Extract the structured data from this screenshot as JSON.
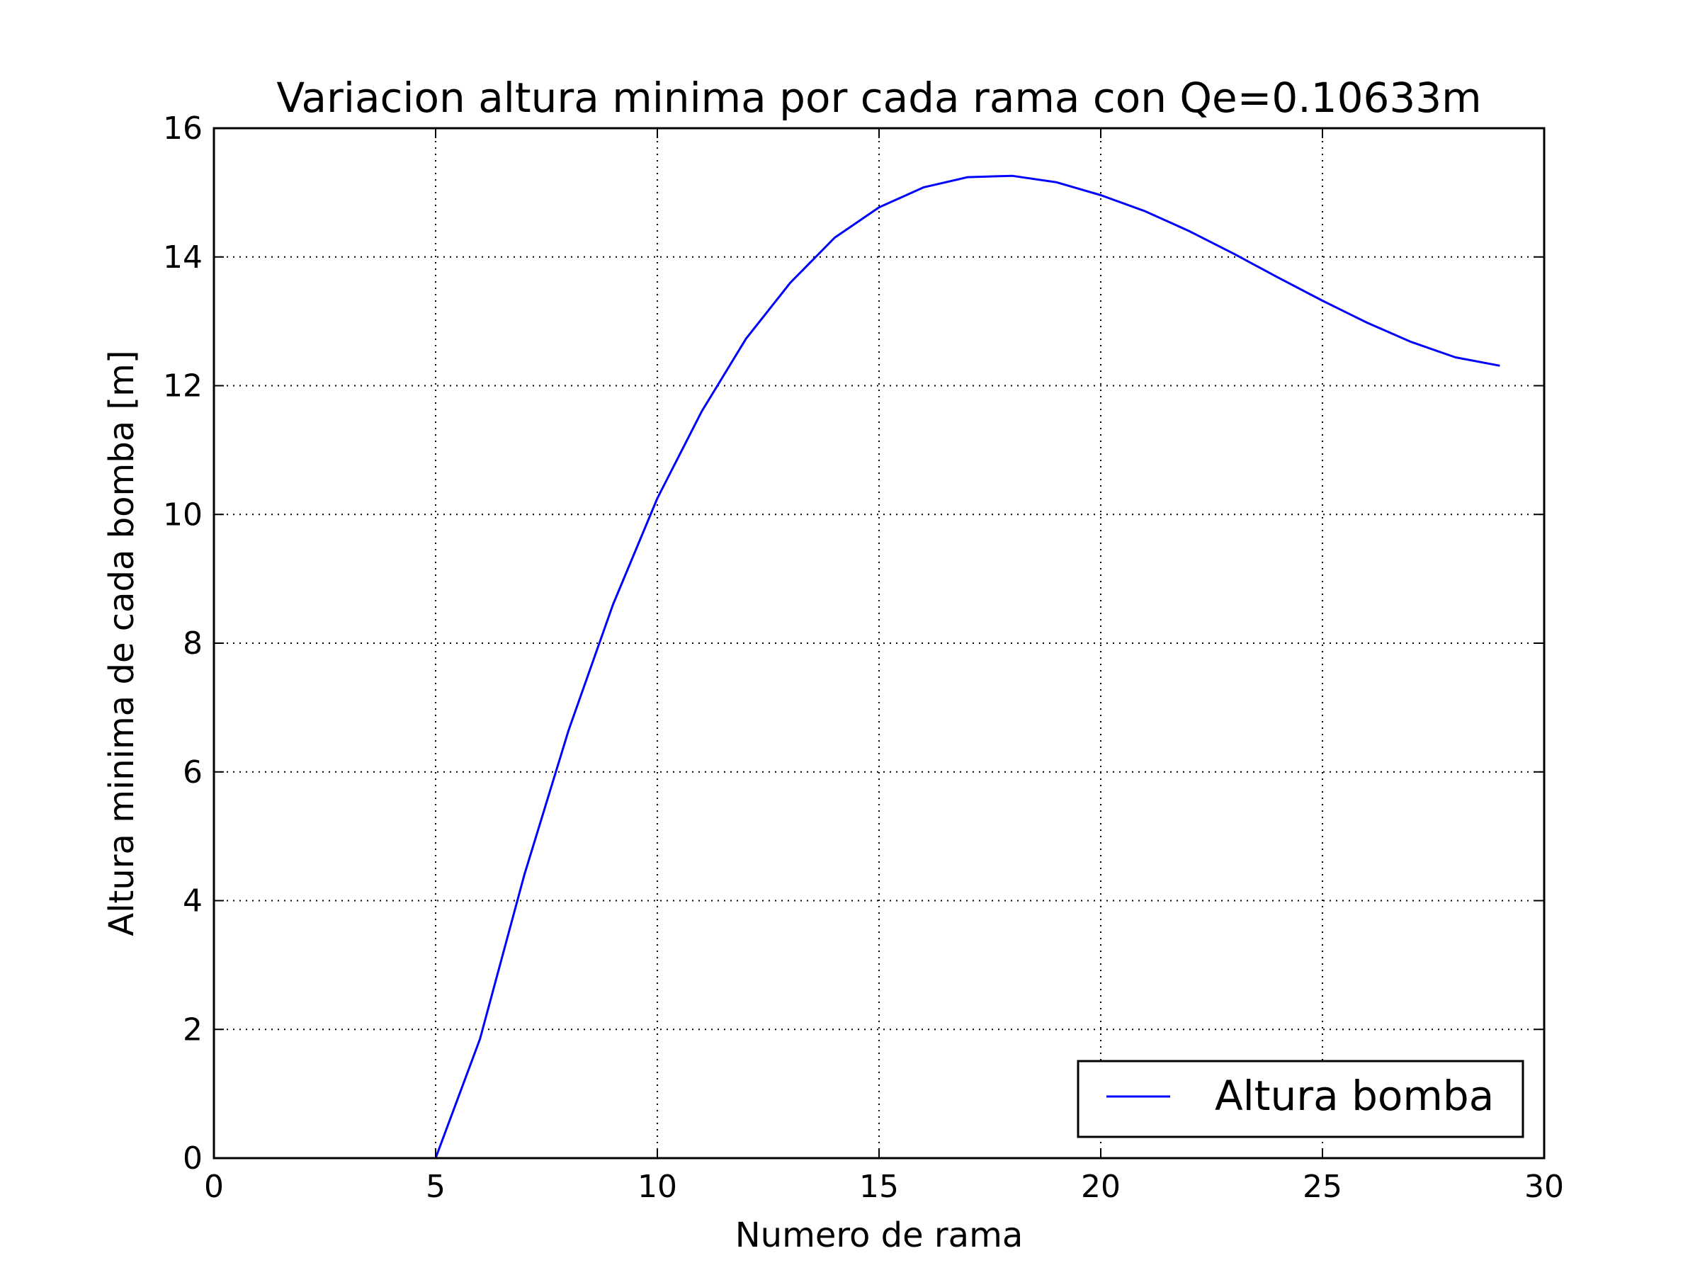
{
  "chart_data": {
    "type": "line",
    "title": "Variacion altura minima por cada rama con Qe=0.10633m",
    "xlabel": "Numero de rama",
    "ylabel": "Altura minima de cada bomba [m]",
    "xlim": [
      0,
      30
    ],
    "ylim": [
      0,
      16
    ],
    "xticks": [
      "0",
      "5",
      "10",
      "15",
      "20",
      "25",
      "30"
    ],
    "yticks": [
      "0",
      "2",
      "4",
      "6",
      "8",
      "10",
      "12",
      "14",
      "16"
    ],
    "grid": true,
    "legend_position": "lower-right",
    "series": [
      {
        "name": "Altura bomba",
        "color": "#0000ff",
        "x": [
          5,
          6,
          7,
          8,
          9,
          10,
          11,
          12,
          13,
          14,
          15,
          16,
          17,
          18,
          19,
          20,
          21,
          22,
          23,
          24,
          25,
          26,
          27,
          28,
          29
        ],
        "y": [
          0.0,
          1.85,
          4.4,
          6.65,
          8.6,
          10.25,
          11.6,
          12.73,
          13.6,
          14.3,
          14.77,
          15.08,
          15.24,
          15.26,
          15.16,
          14.96,
          14.71,
          14.4,
          14.05,
          13.68,
          13.32,
          12.98,
          12.68,
          12.44,
          12.31
        ]
      }
    ]
  }
}
